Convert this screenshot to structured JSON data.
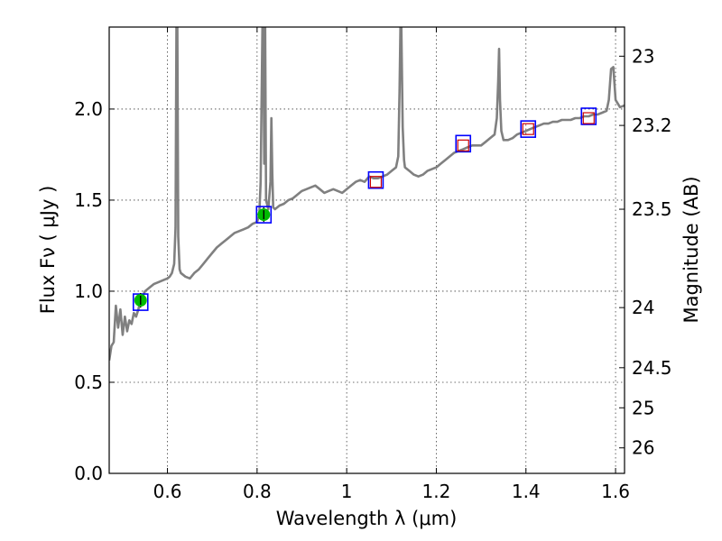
{
  "chart_data": {
    "type": "line",
    "title": "",
    "xlabel": "Wavelength  λ (μm)",
    "ylabel": "Flux  Fν  ( μJy )",
    "y2label": "Magnitude (AB)",
    "xlim": [
      0.47,
      1.62
    ],
    "ylim": [
      0.0,
      2.45
    ],
    "grid": true,
    "legend": "none",
    "x_ticks": [
      0.6,
      0.8,
      1.0,
      1.2,
      1.4,
      1.6
    ],
    "x_tick_labels": [
      "0.6",
      "0.8",
      "1",
      "1.2",
      "1.4",
      "1.6"
    ],
    "y_ticks": [
      0.0,
      0.5,
      1.0,
      1.5,
      2.0
    ],
    "y_tick_labels": [
      "0.0",
      "0.5",
      "1.0",
      "1.5",
      "2.0"
    ],
    "right_ticks": [
      {
        "flux": 2.29,
        "label": "23"
      },
      {
        "flux": 1.91,
        "label": "23.2"
      },
      {
        "flux": 1.45,
        "label": "23.5"
      },
      {
        "flux": 0.91,
        "label": "24"
      },
      {
        "flux": 0.58,
        "label": "24.5"
      },
      {
        "flux": 0.36,
        "label": "25"
      },
      {
        "flux": 0.14,
        "label": "26"
      }
    ],
    "colors": {
      "spectrum": "#808080",
      "model_box": "#0000ff",
      "observed_point": "#00bb00",
      "observed_square": "#cc0000"
    },
    "series": [
      {
        "name": "spectrum",
        "x": [
          0.47,
          0.475,
          0.48,
          0.485,
          0.49,
          0.495,
          0.5,
          0.505,
          0.51,
          0.515,
          0.52,
          0.525,
          0.53,
          0.535,
          0.54,
          0.55,
          0.56,
          0.57,
          0.58,
          0.59,
          0.6,
          0.605,
          0.61,
          0.615,
          0.618,
          0.62,
          0.622,
          0.624,
          0.627,
          0.63,
          0.64,
          0.65,
          0.66,
          0.67,
          0.68,
          0.69,
          0.7,
          0.71,
          0.72,
          0.73,
          0.74,
          0.75,
          0.76,
          0.77,
          0.78,
          0.79,
          0.8,
          0.805,
          0.808,
          0.812,
          0.814,
          0.816,
          0.818,
          0.82,
          0.825,
          0.83,
          0.832,
          0.834,
          0.836,
          0.84,
          0.85,
          0.86,
          0.87,
          0.88,
          0.89,
          0.9,
          0.91,
          0.92,
          0.93,
          0.94,
          0.95,
          0.96,
          0.97,
          0.98,
          0.99,
          1.0,
          1.01,
          1.02,
          1.03,
          1.04,
          1.05,
          1.06,
          1.07,
          1.08,
          1.09,
          1.1,
          1.11,
          1.115,
          1.118,
          1.12,
          1.122,
          1.125,
          1.128,
          1.13,
          1.14,
          1.15,
          1.16,
          1.17,
          1.18,
          1.19,
          1.2,
          1.21,
          1.22,
          1.23,
          1.24,
          1.25,
          1.26,
          1.27,
          1.28,
          1.29,
          1.3,
          1.31,
          1.32,
          1.33,
          1.335,
          1.338,
          1.34,
          1.342,
          1.345,
          1.35,
          1.36,
          1.37,
          1.38,
          1.39,
          1.4,
          1.41,
          1.42,
          1.43,
          1.44,
          1.45,
          1.46,
          1.47,
          1.48,
          1.49,
          1.5,
          1.51,
          1.52,
          1.53,
          1.54,
          1.55,
          1.56,
          1.57,
          1.58,
          1.585,
          1.59,
          1.595,
          1.6,
          1.61,
          1.62
        ],
        "y": [
          0.62,
          0.7,
          0.72,
          0.92,
          0.8,
          0.9,
          0.76,
          0.86,
          0.78,
          0.84,
          0.82,
          0.88,
          0.86,
          0.9,
          0.95,
          1.0,
          1.02,
          1.04,
          1.05,
          1.06,
          1.07,
          1.08,
          1.1,
          1.15,
          1.35,
          2.45,
          2.45,
          1.3,
          1.12,
          1.1,
          1.08,
          1.07,
          1.1,
          1.12,
          1.15,
          1.18,
          1.21,
          1.24,
          1.26,
          1.28,
          1.3,
          1.32,
          1.33,
          1.34,
          1.35,
          1.37,
          1.38,
          1.42,
          1.6,
          2.45,
          2.45,
          1.7,
          2.45,
          1.5,
          1.45,
          1.6,
          1.95,
          1.65,
          1.46,
          1.45,
          1.47,
          1.48,
          1.5,
          1.51,
          1.53,
          1.55,
          1.56,
          1.57,
          1.58,
          1.56,
          1.54,
          1.55,
          1.56,
          1.55,
          1.54,
          1.56,
          1.58,
          1.6,
          1.61,
          1.6,
          1.63,
          1.62,
          1.62,
          1.63,
          1.64,
          1.66,
          1.68,
          1.74,
          2.1,
          2.45,
          2.45,
          1.9,
          1.72,
          1.68,
          1.66,
          1.64,
          1.63,
          1.64,
          1.66,
          1.67,
          1.68,
          1.7,
          1.72,
          1.74,
          1.76,
          1.77,
          1.78,
          1.79,
          1.8,
          1.8,
          1.8,
          1.82,
          1.84,
          1.86,
          1.95,
          2.15,
          2.33,
          2.05,
          1.88,
          1.83,
          1.83,
          1.84,
          1.86,
          1.87,
          1.88,
          1.89,
          1.9,
          1.91,
          1.92,
          1.92,
          1.93,
          1.93,
          1.94,
          1.94,
          1.94,
          1.95,
          1.95,
          1.96,
          1.96,
          1.97,
          1.97,
          1.98,
          1.99,
          2.05,
          2.22,
          2.23,
          2.05,
          2.01,
          2.02
        ]
      },
      {
        "name": "model_boxes",
        "x": [
          0.54,
          0.815,
          1.065,
          1.26,
          1.405,
          1.54
        ],
        "y": [
          0.94,
          1.42,
          1.61,
          1.81,
          1.89,
          1.96
        ]
      },
      {
        "name": "observed_points",
        "x": [
          0.54,
          0.815
        ],
        "y": [
          0.95,
          1.42
        ],
        "yerr": [
          0.04,
          0.04
        ]
      },
      {
        "name": "observed_squares",
        "x": [
          1.065,
          1.26,
          1.405,
          1.54
        ],
        "y": [
          1.6,
          1.8,
          1.89,
          1.95
        ]
      }
    ]
  }
}
